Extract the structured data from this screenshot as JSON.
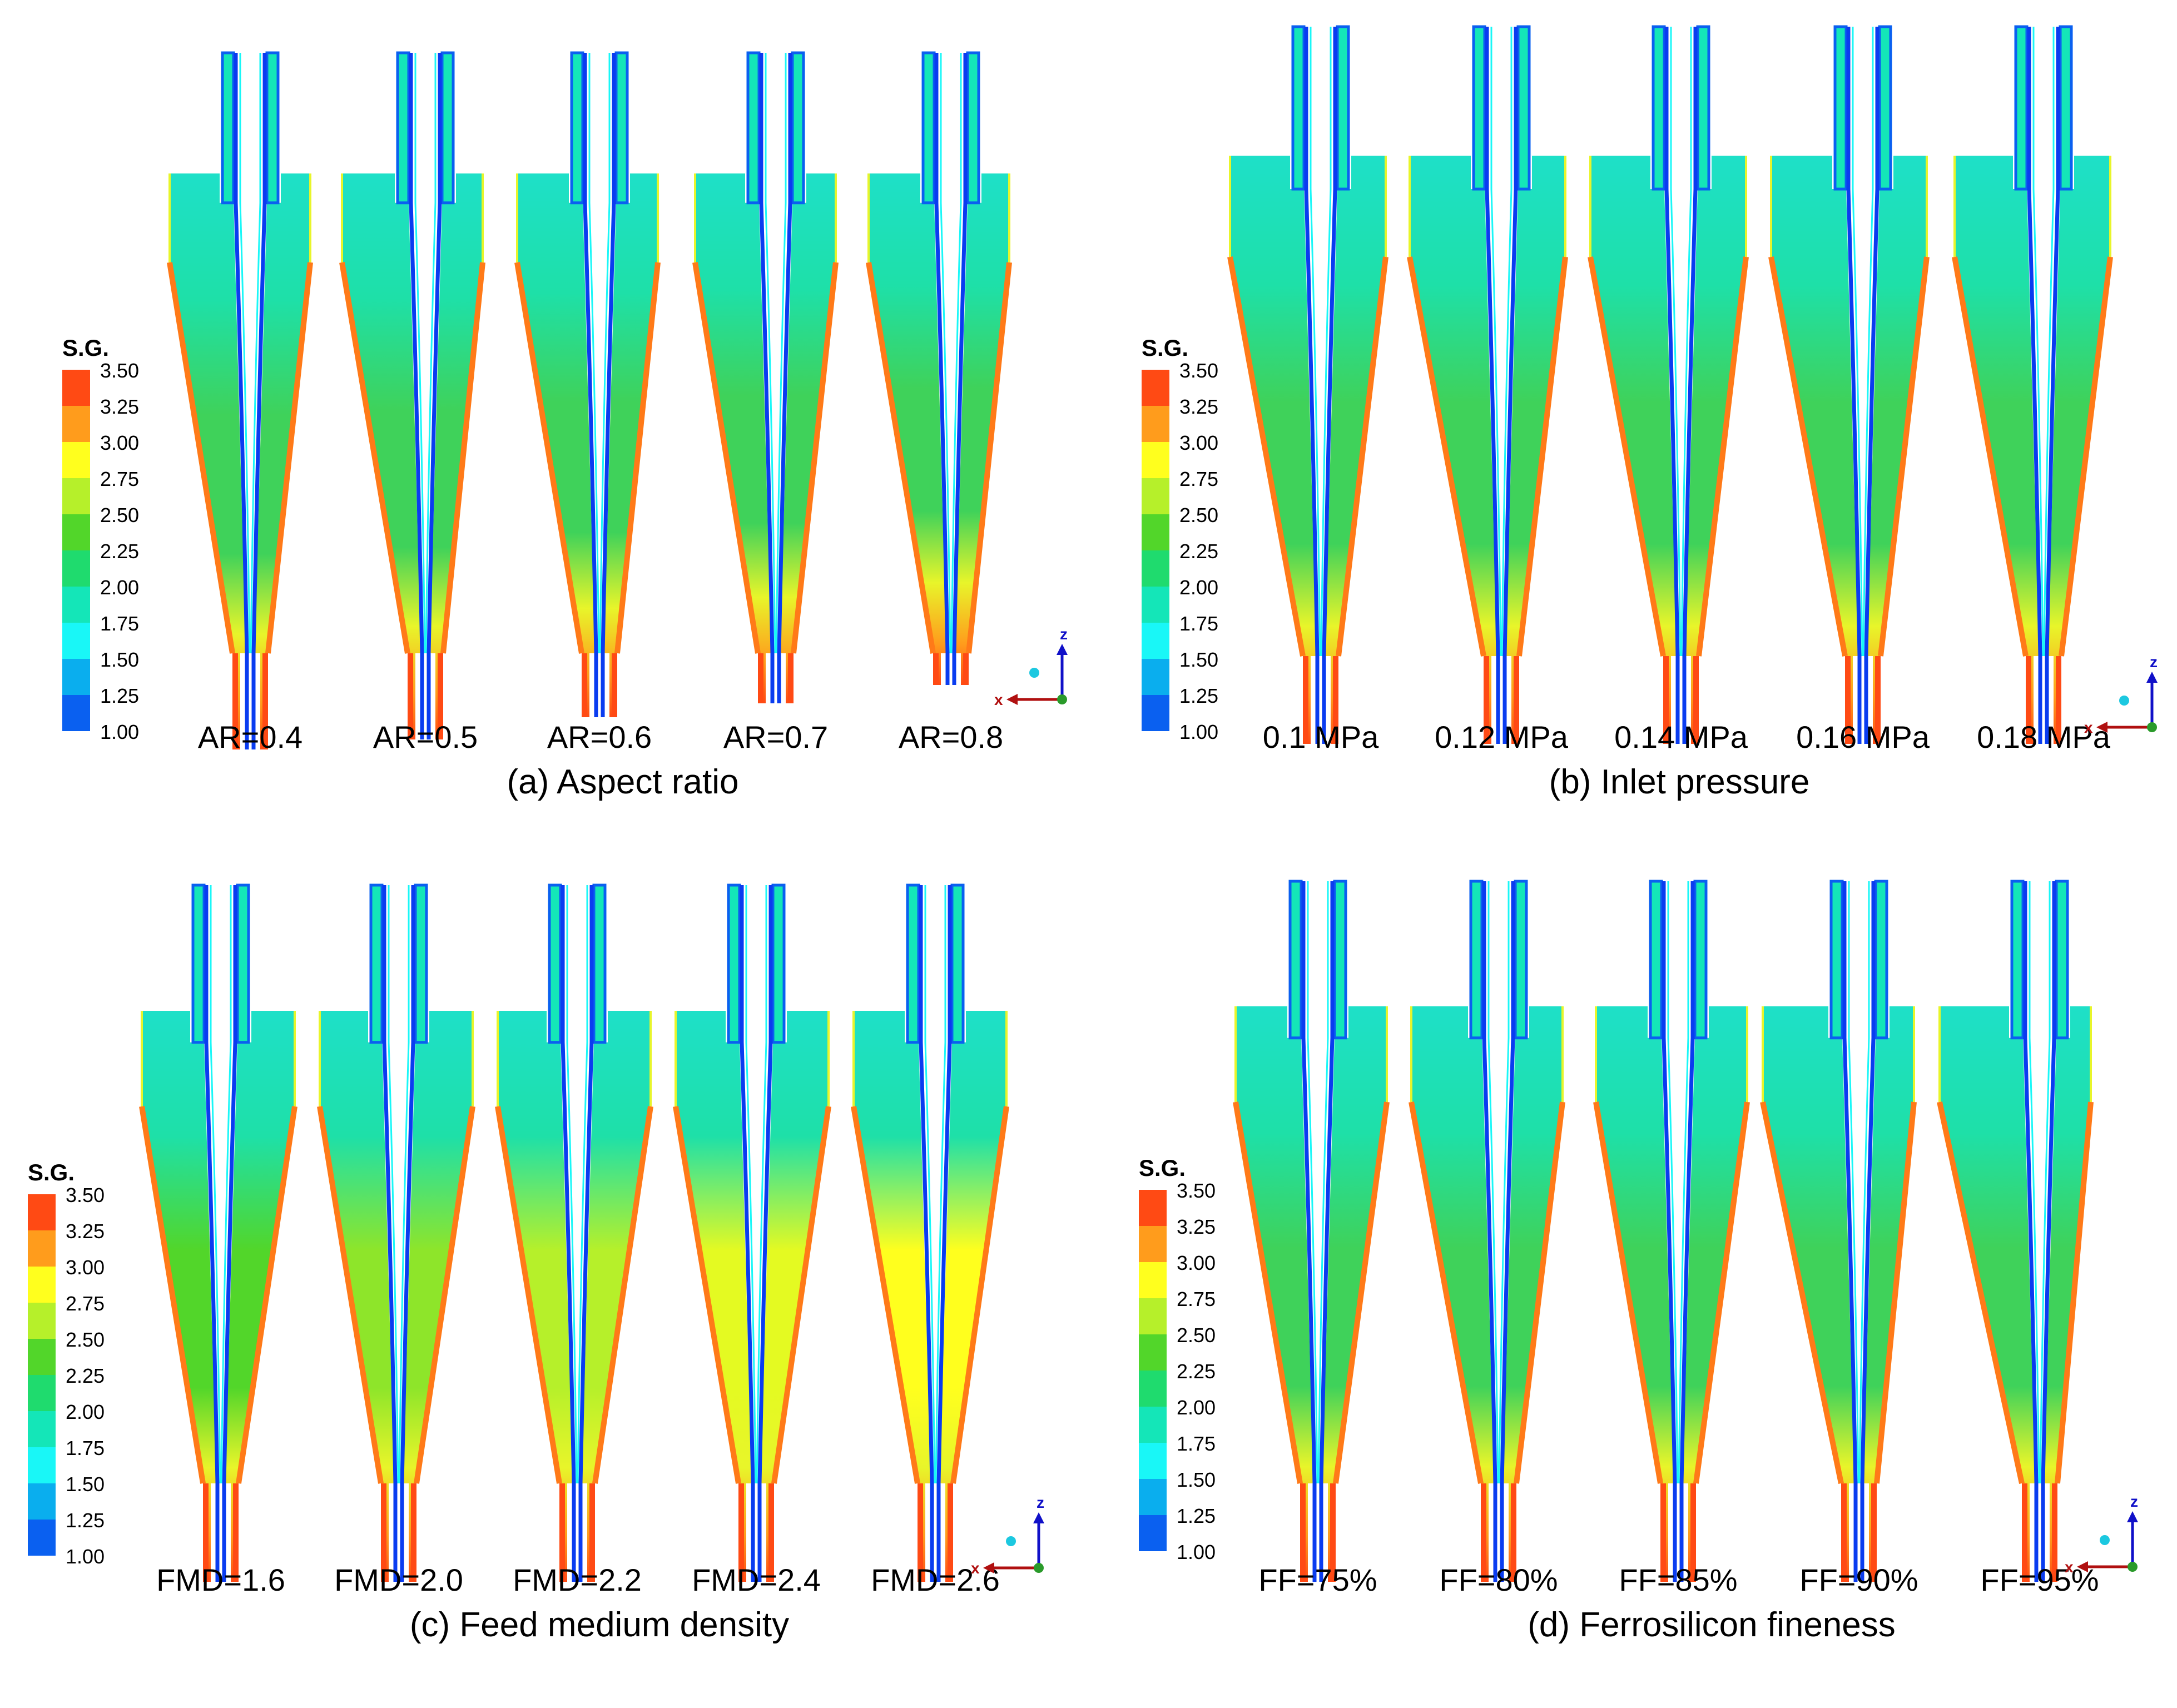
{
  "legend": {
    "title": "S.G.",
    "ticks": [
      "3.50",
      "3.25",
      "3.00",
      "2.75",
      "2.50",
      "2.25",
      "2.00",
      "1.75",
      "1.50",
      "1.25",
      "1.00"
    ],
    "colors": [
      "#ff4a14",
      "#ff9c1c",
      "#ffff1e",
      "#b6f02a",
      "#52d62a",
      "#1fdb6e",
      "#14e6b8",
      "#19f7f7",
      "#0aaeee",
      "#0a60f0"
    ]
  },
  "axes": {
    "z": "z",
    "x": "x"
  },
  "panels": [
    {
      "caption": "(a) Aspect ratio",
      "labels": [
        "AR=0.4",
        "AR=0.5",
        "AR=0.6",
        "AR=0.7",
        "AR=0.8"
      ],
      "fill": [
        "#3fd25a",
        "#3fd25a",
        "#3fd25a",
        "#3fd25a",
        "#3fd25a"
      ]
    },
    {
      "caption": "(b) Inlet pressure",
      "labels": [
        "0.1 MPa",
        "0.12 MPa",
        "0.14 MPa",
        "0.16 MPa",
        "0.18 MPa"
      ],
      "fill": [
        "#3fd25a",
        "#3fd25a",
        "#3fd25a",
        "#3fd25a",
        "#3fd25a"
      ]
    },
    {
      "caption": "(c) Feed medium density",
      "labels": [
        "FMD=1.6",
        "FMD=2.0",
        "FMD=2.2",
        "FMD=2.4",
        "FMD=2.6"
      ],
      "fill": [
        "#52d62a",
        "#8ee52a",
        "#b6f02a",
        "#e4fa22",
        "#ffff1e"
      ]
    },
    {
      "caption": "(d) Ferrosilicon fineness",
      "labels": [
        "FF=75%",
        "FF=80%",
        "FF=85%",
        "FF=90%",
        "FF=95%"
      ],
      "fill": [
        "#3fd25a",
        "#3fd25a",
        "#3fd25a",
        "#3fd25a",
        "#3fd25a"
      ]
    }
  ]
}
